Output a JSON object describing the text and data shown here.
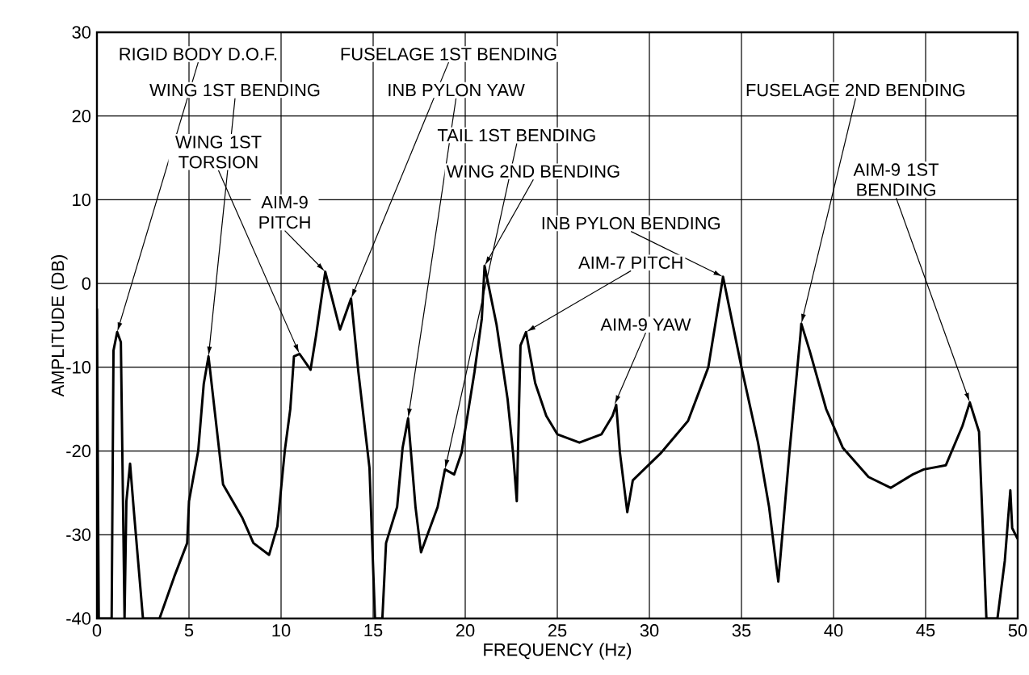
{
  "chart_data": {
    "type": "line",
    "xlabel": "FREQUENCY (Hz)",
    "ylabel": "AMPLITUDE (DB)",
    "xlim": [
      0,
      50
    ],
    "ylim": [
      -40,
      30
    ],
    "xticks": [
      0,
      5,
      10,
      15,
      20,
      25,
      30,
      35,
      40,
      45,
      50
    ],
    "yticks": [
      -40,
      -30,
      -20,
      -10,
      0,
      10,
      20,
      30
    ],
    "grid": true,
    "marker": "none",
    "line_style": "solid",
    "series": [
      {
        "color": "#000000",
        "x": [
          0,
          0.1,
          0.8,
          0.9,
          1.1,
          1.3,
          1.5,
          1.6,
          1.8,
          2.0,
          2.5,
          3.4,
          4.2,
          4.9,
          5.0,
          5.5,
          5.8,
          6.06,
          6.85,
          7.9,
          8.5,
          9.35,
          9.8,
          10.2,
          10.5,
          10.7,
          11.0,
          11.6,
          11.9,
          12.4,
          13.2,
          13.8,
          14.2,
          14.8,
          15.1,
          15.5,
          15.7,
          16.3,
          16.6,
          16.9,
          17.3,
          17.6,
          18.5,
          18.9,
          19.4,
          19.8,
          20.5,
          20.9,
          21.05,
          21.7,
          22.3,
          22.6,
          22.8,
          23.0,
          23.3,
          23.8,
          24.4,
          25.0,
          26.2,
          27.4,
          28.0,
          28.2,
          28.4,
          28.8,
          29.1,
          30.6,
          32.1,
          33.2,
          34.0,
          35.0,
          35.9,
          36.5,
          37.0,
          37.6,
          38.2,
          38.25,
          38.7,
          39.6,
          40.5,
          41.9,
          43.1,
          44.3,
          44.9,
          46.1,
          47.0,
          47.4,
          47.9,
          48.3,
          48.9,
          49.3,
          49.6,
          49.7,
          50.0
        ],
        "values": [
          -3,
          -40,
          -40,
          -8,
          -5.8,
          -7,
          -40,
          -26,
          -21.5,
          -27,
          -40,
          -40,
          -35,
          -31,
          -26,
          -20,
          -12,
          -8.7,
          -24,
          -28,
          -31,
          -32.4,
          -29,
          -20,
          -15,
          -8.7,
          -8.4,
          -10.3,
          -6.2,
          1.4,
          -5.5,
          -1.8,
          -10.6,
          -22,
          -40,
          -40,
          -31,
          -26.7,
          -19.6,
          -16.1,
          -26.7,
          -32.1,
          -26.7,
          -22.2,
          -22.8,
          -20.2,
          -10.6,
          -4.2,
          2.1,
          -4.9,
          -13.8,
          -20.3,
          -26,
          -7.4,
          -5.8,
          -11.9,
          -15.8,
          -18,
          -19,
          -18,
          -15.8,
          -14.5,
          -20.2,
          -27.3,
          -23.5,
          -20.3,
          -16.4,
          -10,
          0.8,
          -10,
          -19,
          -26.7,
          -35.6,
          -20.3,
          -6.2,
          -4.8,
          -8,
          -15,
          -19.6,
          -23.1,
          -24.4,
          -22.8,
          -22.2,
          -21.7,
          -17,
          -14.2,
          -17.7,
          -40,
          -40,
          -33.1,
          -24.7,
          -29.2,
          -30.5
        ]
      }
    ],
    "annotations": [
      {
        "text": "RIGID BODY D.O.F.",
        "x": 1.1,
        "y": -5.8
      },
      {
        "text": "WING 1ST BENDING",
        "x": 6.06,
        "y": -8.7
      },
      {
        "text": "WING 1ST TORSION",
        "x": 11.0,
        "y": -8.4
      },
      {
        "text": "AIM-9 PITCH",
        "x": 12.4,
        "y": 1.4
      },
      {
        "text": "FUSELAGE 1ST BENDING",
        "x": 13.8,
        "y": -1.8
      },
      {
        "text": "INB PYLON YAW",
        "x": 16.9,
        "y": -16.1
      },
      {
        "text": "TAIL 1ST BENDING",
        "x": 18.9,
        "y": -22.2
      },
      {
        "text": "WING 2ND BENDING",
        "x": 21.05,
        "y": 2.1
      },
      {
        "text": "INB PYLON BENDING",
        "x": 34.0,
        "y": 0.8
      },
      {
        "text": "AIM-7 PITCH",
        "x": 23.3,
        "y": -5.8
      },
      {
        "text": "AIM-9 YAW",
        "x": 28.1,
        "y": -14.5
      },
      {
        "text": "FUSELAGE 2ND BENDING",
        "x": 38.25,
        "y": -4.8
      },
      {
        "text": "AIM-9 1ST BENDING",
        "x": 47.4,
        "y": -14.2
      }
    ]
  }
}
